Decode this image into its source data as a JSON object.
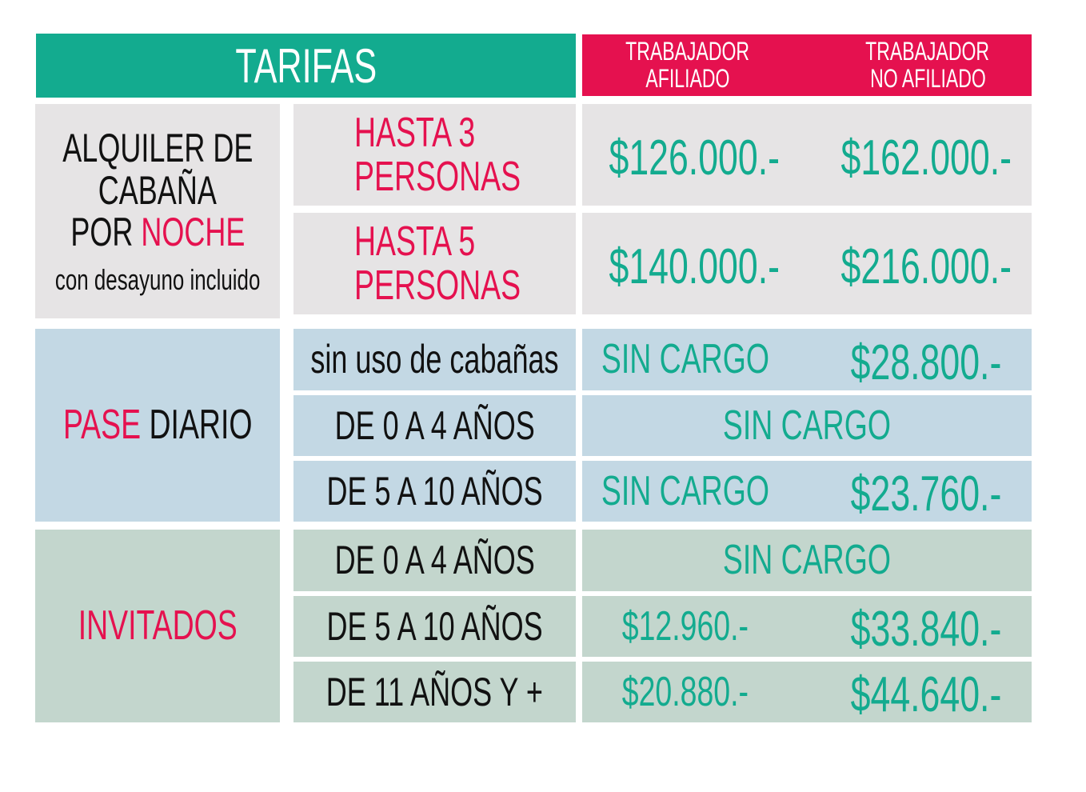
{
  "header": {
    "title": "TARIFAS",
    "col_afiliado": [
      "TRABAJADOR",
      "AFILIADO"
    ],
    "col_no_afiliado": [
      "TRABAJADOR",
      "NO AFILIADO"
    ]
  },
  "cabana": {
    "label_lines": [
      "ALQUILER DE",
      "CABAÑA"
    ],
    "label_por": "POR",
    "label_noche": "NOCHE",
    "note": "con desayuno incluido",
    "rows": [
      {
        "label": [
          "HASTA 3",
          "PERSONAS"
        ],
        "afiliado": "$126.000.-",
        "no_afiliado": "$162.000.-"
      },
      {
        "label": [
          "HASTA 5",
          "PERSONAS"
        ],
        "afiliado": "$140.000.-",
        "no_afiliado": "$216.000.-"
      }
    ]
  },
  "pase": {
    "label_pase": "PASE",
    "label_diario": "DIARIO",
    "rows": [
      {
        "label": "sin uso de cabañas",
        "afiliado": "SIN CARGO",
        "no_afiliado": "$28.800.-"
      },
      {
        "label": "DE 0 A 4 AÑOS",
        "both": "SIN CARGO"
      },
      {
        "label": "DE 5 A 10 AÑOS",
        "afiliado": "SIN CARGO",
        "no_afiliado": "$23.760.-"
      }
    ]
  },
  "invitados": {
    "label": "INVITADOS",
    "rows": [
      {
        "label": "DE 0 A 4 AÑOS",
        "both": "SIN CARGO"
      },
      {
        "label": "DE 5 A 10 AÑOS",
        "afiliado": "$12.960.-",
        "no_afiliado": "$33.840.-"
      },
      {
        "label": "DE 11 AÑOS Y +",
        "afiliado": "$20.880.-",
        "no_afiliado": "$44.640.-"
      }
    ]
  },
  "colors": {
    "green": "#13ab8f",
    "pink": "#e5114f",
    "gray": "#e6e4e5",
    "blue": "#c3d8e4",
    "sage": "#c3d6cd"
  }
}
